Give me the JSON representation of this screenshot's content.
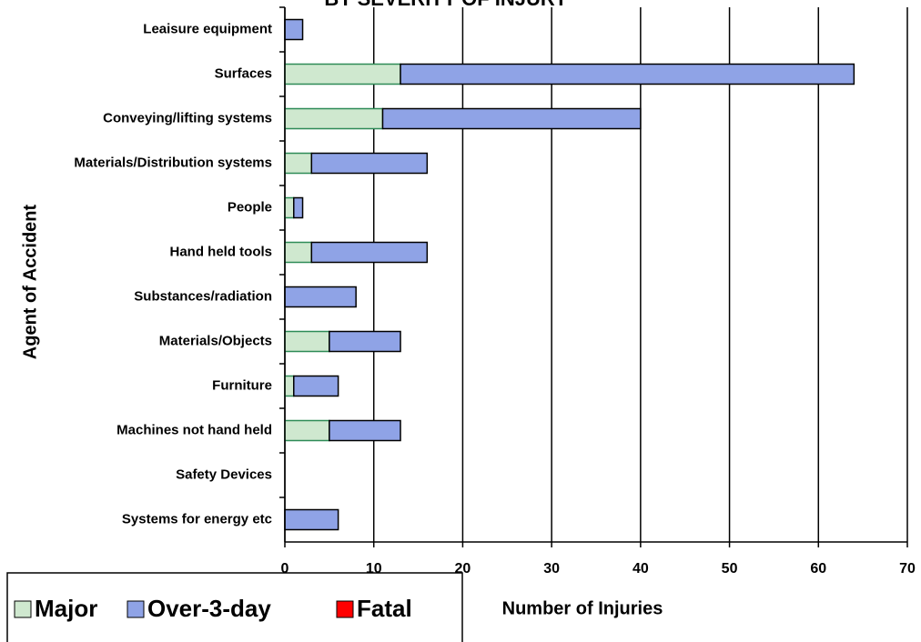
{
  "chart_data": {
    "type": "stacked_barh",
    "title": "BY SEVERITY OF INJURY",
    "x_label": "Number of Injuries",
    "y_label": "Agent of Accident",
    "categories": [
      "Leaisure equipment",
      "Surfaces",
      "Conveying/lifting systems",
      "Materials/Distribution systems",
      "People",
      "Hand held tools",
      "Substances/radiation",
      "Materials/Objects",
      "Furniture",
      "Machines not hand held",
      "Safety Devices",
      "Systems for energy etc"
    ],
    "series": [
      {
        "name": "Major",
        "color": "#cfe8cf",
        "values": [
          0,
          13,
          11,
          3,
          1,
          3,
          0,
          5,
          1,
          5,
          0,
          0
        ]
      },
      {
        "name": "Over-3-day",
        "color": "#8fa3e6",
        "values": [
          2,
          51,
          29,
          13,
          1,
          13,
          8,
          8,
          5,
          8,
          0,
          6
        ]
      },
      {
        "name": "Fatal",
        "color": "#ff0000",
        "values": [
          0,
          0,
          0,
          0,
          0,
          0,
          0,
          0,
          0,
          0,
          0,
          0
        ]
      }
    ],
    "xlim": [
      0,
      70
    ],
    "xticks": [
      0,
      10,
      20,
      30,
      40,
      50,
      60,
      70
    ],
    "grid": true
  }
}
